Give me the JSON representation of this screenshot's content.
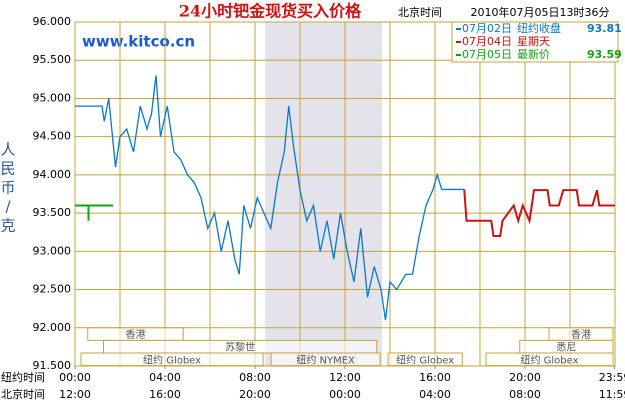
{
  "chart_data": {
    "type": "line",
    "title": "24小时钯金现货买入价格",
    "subtitle": "北京时间",
    "timestamp": "2010年07月05日13时36分",
    "watermark": "www.kitco.cn",
    "ylabel": "人民币/克",
    "xlabel": "纽约时间",
    "x2label": "北京时间",
    "ylim": [
      91.5,
      96
    ],
    "yticks": [
      {
        "value": 96,
        "label": "96.000"
      },
      {
        "value": 95.5,
        "label": "95.500"
      },
      {
        "value": 95,
        "label": "95.000"
      },
      {
        "value": 94.5,
        "label": "94.500"
      },
      {
        "value": 94,
        "label": "94.000"
      },
      {
        "value": 93.5,
        "label": "93.500"
      },
      {
        "value": 93,
        "label": "93.000"
      },
      {
        "value": 92.5,
        "label": "92.500"
      },
      {
        "value": 92,
        "label": "92.000"
      },
      {
        "value": 91.5,
        "label": "91.500"
      }
    ],
    "xlim": [
      0,
      24
    ],
    "xticks": [
      {
        "value": 0,
        "label": "00:00"
      },
      {
        "value": 4,
        "label": "04:00"
      },
      {
        "value": 8,
        "label": "08:00"
      },
      {
        "value": 12,
        "label": "12:00"
      },
      {
        "value": 16,
        "label": "16:00"
      },
      {
        "value": 20,
        "label": "20:00"
      },
      {
        "value": 23.98,
        "label": "23:59"
      }
    ],
    "x2ticklabels": [
      "12:00",
      "16:00",
      "20:00",
      "00:00",
      "04:00",
      "08:00",
      "11:59"
    ],
    "xgrid": [
      0,
      2,
      4,
      6,
      8,
      10,
      12,
      14,
      16,
      18,
      20,
      22,
      24
    ],
    "grid": true,
    "shaded": [
      8.45,
      13.65
    ],
    "series": [
      {
        "name": "07月02日",
        "color": "#0a78c8",
        "note": "纽约收盘",
        "last": 93.81,
        "x": [
          0,
          1.2,
          1.3,
          1.5,
          1.7,
          1.8,
          2.0,
          2.3,
          2.6,
          2.9,
          3.2,
          3.4,
          3.6,
          3.8,
          4.1,
          4.4,
          4.7,
          5.0,
          5.3,
          5.6,
          5.9,
          6.2,
          6.5,
          6.8,
          7.1,
          7.3,
          7.5,
          7.8,
          8.1,
          8.4,
          8.7,
          9.0,
          9.3,
          9.5,
          9.7,
          10.0,
          10.3,
          10.6,
          10.9,
          11.2,
          11.5,
          11.8,
          12.1,
          12.4,
          12.7,
          13.0,
          13.3,
          13.6,
          13.8,
          14.0,
          14.3,
          14.7,
          15.0,
          15.3,
          15.6,
          15.9,
          16.1,
          16.3,
          17.3
        ],
        "values": [
          94.9,
          94.9,
          94.7,
          95.0,
          94.4,
          94.1,
          94.5,
          94.6,
          94.3,
          94.9,
          94.6,
          94.8,
          95.3,
          94.5,
          94.9,
          94.3,
          94.2,
          94.0,
          93.9,
          93.7,
          93.3,
          93.5,
          93.0,
          93.4,
          92.9,
          92.7,
          93.6,
          93.3,
          93.7,
          93.5,
          93.3,
          93.9,
          94.3,
          94.9,
          94.4,
          93.8,
          93.4,
          93.6,
          93.0,
          93.4,
          92.9,
          93.5,
          93.0,
          92.6,
          93.3,
          92.4,
          92.8,
          92.5,
          92.1,
          92.6,
          92.5,
          92.7,
          92.7,
          93.2,
          93.6,
          93.8,
          94.0,
          93.81,
          93.81
        ]
      },
      {
        "name": "07月04日",
        "color": "#c81414",
        "note": "星期天",
        "x": [
          17.3,
          17.4,
          18.5,
          18.6,
          18.9,
          19.0,
          19.5,
          19.7,
          19.9,
          20.2,
          20.4,
          21.0,
          21.1,
          21.5,
          21.7,
          22.3,
          22.4,
          23.0,
          23.2,
          23.3,
          24
        ],
        "values": [
          93.81,
          93.4,
          93.4,
          93.2,
          93.2,
          93.4,
          93.6,
          93.4,
          93.6,
          93.4,
          93.8,
          93.8,
          93.6,
          93.6,
          93.8,
          93.8,
          93.6,
          93.6,
          93.8,
          93.6,
          93.6
        ]
      },
      {
        "name": "07月05日",
        "color": "#14a014",
        "note": "最新价",
        "last": 93.59,
        "x": [
          0,
          0.6,
          0.6,
          0.6,
          1.7
        ],
        "values": [
          93.6,
          93.6,
          93.4,
          93.6,
          93.6
        ]
      }
    ],
    "sessions": [
      [
        {
          "label": "香港",
          "start": 0.3,
          "end": 4.9
        },
        {
          "label": "香港",
          "start": 20.8,
          "end": 24
        }
      ],
      [
        {
          "label": "苏黎世",
          "start": 1.0,
          "end": 13.5
        },
        {
          "label": "悉尼",
          "start": 19.5,
          "end": 24
        }
      ],
      [
        {
          "label": "纽约 Globex",
          "start": 0,
          "end": 8.45
        },
        {
          "label": "纽约 NYMEX",
          "start": 8.45,
          "end": 13.65
        },
        {
          "label": "纽约 Globex",
          "start": 13.65,
          "end": 17.3
        },
        {
          "label": "纽约 Globex",
          "start": 18.0,
          "end": 24
        }
      ]
    ]
  }
}
